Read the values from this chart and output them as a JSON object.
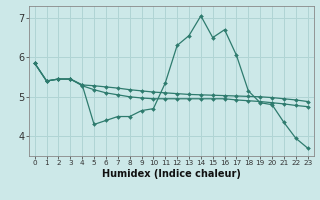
{
  "title": "",
  "xlabel": "Humidex (Indice chaleur)",
  "ylabel": "",
  "bg_color": "#cce8e8",
  "grid_color": "#b0d4d4",
  "line_color": "#2e7b6e",
  "xlim": [
    -0.5,
    23.5
  ],
  "ylim": [
    3.5,
    7.3
  ],
  "xticks": [
    0,
    1,
    2,
    3,
    4,
    5,
    6,
    7,
    8,
    9,
    10,
    11,
    12,
    13,
    14,
    15,
    16,
    17,
    18,
    19,
    20,
    21,
    22,
    23
  ],
  "yticks": [
    4,
    5,
    6,
    7
  ],
  "series": [
    [
      5.85,
      5.4,
      5.45,
      5.45,
      5.3,
      4.3,
      4.4,
      4.5,
      4.5,
      4.65,
      4.7,
      5.35,
      6.3,
      6.55,
      7.05,
      6.5,
      6.7,
      6.05,
      5.15,
      4.85,
      4.8,
      4.35,
      3.95,
      3.7
    ],
    [
      5.85,
      5.4,
      5.45,
      5.45,
      5.28,
      5.18,
      5.1,
      5.05,
      5.0,
      4.97,
      4.95,
      4.95,
      4.95,
      4.95,
      4.95,
      4.95,
      4.95,
      4.92,
      4.9,
      4.88,
      4.85,
      4.82,
      4.78,
      4.75
    ],
    [
      5.85,
      5.4,
      5.45,
      5.45,
      5.3,
      5.28,
      5.25,
      5.22,
      5.18,
      5.15,
      5.12,
      5.1,
      5.08,
      5.06,
      5.05,
      5.04,
      5.03,
      5.02,
      5.01,
      5.0,
      4.98,
      4.95,
      4.92,
      4.88
    ]
  ]
}
